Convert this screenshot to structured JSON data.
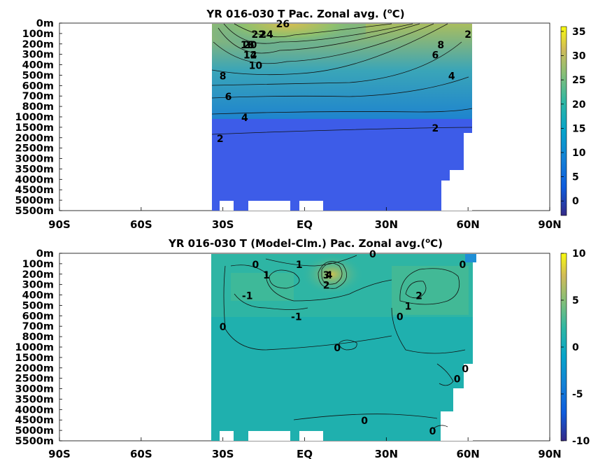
{
  "chart_data": [
    {
      "type": "heatmap",
      "title": "YR 016-030 T Pac. Zonal avg. (",
      "title_sup": "o",
      "title_end": "C)",
      "x_ticks": [
        "90S",
        "60S",
        "30S",
        "EQ",
        "30N",
        "60N",
        "90N"
      ],
      "x_tick_values": [
        -90,
        -60,
        -30,
        0,
        30,
        60,
        90
      ],
      "y_ticks": [
        "0m",
        "100m",
        "200m",
        "300m",
        "400m",
        "500m",
        "600m",
        "700m",
        "800m",
        "1000m",
        "1500m",
        "2000m",
        "2500m",
        "3000m",
        "3500m",
        "4000m",
        "4500m",
        "5000m",
        "5500m"
      ],
      "colorbar_ticks": [
        "35",
        "30",
        "25",
        "20",
        "15",
        "10",
        "5",
        "0"
      ],
      "colorbar_values": [
        35,
        30,
        25,
        20,
        15,
        10,
        5,
        0
      ],
      "clim": [
        -3,
        36
      ],
      "data_xrange": [
        -34,
        62
      ],
      "contour_labels": [
        {
          "text": "26",
          "x": -8,
          "depth": "0m"
        },
        {
          "text": "24",
          "x": -14,
          "depth": "100m"
        },
        {
          "text": "22",
          "x": -17,
          "depth": "100m"
        },
        {
          "text": "20",
          "x": -20,
          "depth": "200m"
        },
        {
          "text": "18",
          "x": -21,
          "depth": "200m"
        },
        {
          "text": "16",
          "x": -21,
          "depth": "200m"
        },
        {
          "text": "14",
          "x": -20,
          "depth": "300m"
        },
        {
          "text": "12",
          "x": -20,
          "depth": "300m"
        },
        {
          "text": "10",
          "x": -18,
          "depth": "400m"
        },
        {
          "text": "8",
          "x": -30,
          "depth": "500m"
        },
        {
          "text": "6",
          "x": -28,
          "depth": "700m"
        },
        {
          "text": "4",
          "x": -22,
          "depth": "1000m"
        },
        {
          "text": "2",
          "x": -31,
          "depth": "2000m"
        },
        {
          "text": "8",
          "x": 50,
          "depth": "200m"
        },
        {
          "text": "6",
          "x": 48,
          "depth": "300m"
        },
        {
          "text": "4",
          "x": 54,
          "depth": "500m"
        },
        {
          "text": "2",
          "x": 48,
          "depth": "1500m"
        },
        {
          "text": "2",
          "x": 60,
          "depth": "100m"
        }
      ]
    },
    {
      "type": "heatmap",
      "title": "YR 016-030 T (Model-Clm.) Pac. Zonal avg.(",
      "title_sup": "o",
      "title_end": "C)",
      "x_ticks": [
        "90S",
        "60S",
        "30S",
        "EQ",
        "30N",
        "60N",
        "90N"
      ],
      "x_tick_values": [
        -90,
        -60,
        -30,
        0,
        30,
        60,
        90
      ],
      "y_ticks": [
        "0m",
        "100m",
        "200m",
        "300m",
        "400m",
        "500m",
        "600m",
        "700m",
        "800m",
        "1000m",
        "1500m",
        "2000m",
        "2500m",
        "3000m",
        "3500m",
        "4000m",
        "4500m",
        "5000m",
        "5500m"
      ],
      "colorbar_ticks": [
        "10",
        "5",
        "0",
        "-5",
        "-10"
      ],
      "colorbar_values": [
        10,
        5,
        0,
        -5,
        -10
      ],
      "clim": [
        -10,
        10
      ],
      "data_xrange": [
        -34,
        62
      ],
      "contour_labels": [
        {
          "text": "1",
          "x": -2,
          "depth": "100m"
        },
        {
          "text": "0",
          "x": 25,
          "depth": "0m"
        },
        {
          "text": "0",
          "x": -18,
          "depth": "100m"
        },
        {
          "text": "1",
          "x": -14,
          "depth": "200m"
        },
        {
          "text": "4",
          "x": 9,
          "depth": "200m"
        },
        {
          "text": "3",
          "x": 8,
          "depth": "200m"
        },
        {
          "text": "2",
          "x": 8,
          "depth": "300m"
        },
        {
          "text": "-1",
          "x": -21,
          "depth": "400m"
        },
        {
          "text": "-1",
          "x": -3,
          "depth": "600m"
        },
        {
          "text": "0",
          "x": -30,
          "depth": "700m"
        },
        {
          "text": "0",
          "x": 12,
          "depth": "1000m"
        },
        {
          "text": "2",
          "x": 42,
          "depth": "400m"
        },
        {
          "text": "1",
          "x": 38,
          "depth": "500m"
        },
        {
          "text": "0",
          "x": 35,
          "depth": "600m"
        },
        {
          "text": "0",
          "x": 58,
          "depth": "100m"
        },
        {
          "text": "0",
          "x": 56,
          "depth": "2500m"
        },
        {
          "text": "0",
          "x": 59,
          "depth": "2000m"
        },
        {
          "text": "0",
          "x": 22,
          "depth": "4500m"
        },
        {
          "text": "0",
          "x": 47,
          "depth": "5000m"
        }
      ]
    }
  ]
}
